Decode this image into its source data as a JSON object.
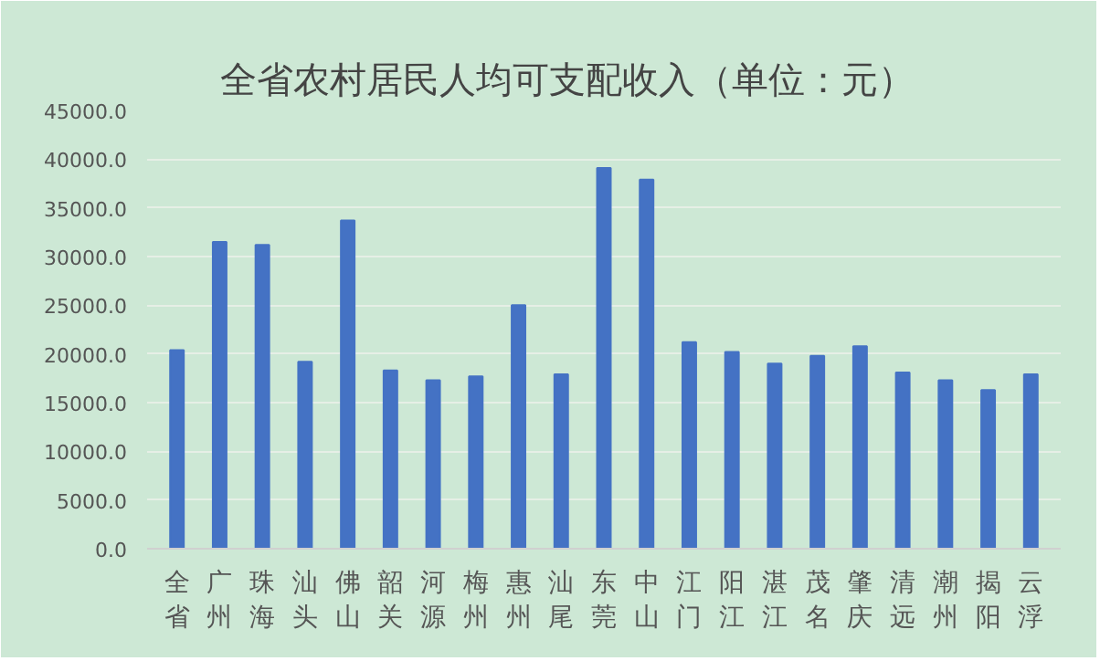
{
  "chart_data": {
    "type": "bar",
    "title": "全省农村居民人均可支配收入（单位：元）",
    "categories": [
      "全省",
      "广州",
      "珠海",
      "汕头",
      "佛山",
      "韶关",
      "河源",
      "梅州",
      "惠州",
      "汕尾",
      "东莞",
      "中山",
      "江门",
      "阳江",
      "湛江",
      "茂名",
      "肇庆",
      "清远",
      "潮州",
      "揭阳",
      "云浮"
    ],
    "values": [
      20400,
      31500,
      31200,
      19200,
      33700,
      18300,
      17300,
      17700,
      25000,
      17900,
      39100,
      37900,
      21200,
      20200,
      19000,
      19800,
      20800,
      18100,
      17300,
      16300,
      17900
    ],
    "color": "#4472c4",
    "ylim": [
      0,
      45000
    ],
    "yticks": [
      {
        "value": 0,
        "label": "0.0"
      },
      {
        "value": 5000,
        "label": "5000.0"
      },
      {
        "value": 10000,
        "label": "10000.0"
      },
      {
        "value": 15000,
        "label": "15000.0"
      },
      {
        "value": 20000,
        "label": "20000.0"
      },
      {
        "value": 25000,
        "label": "25000.0"
      },
      {
        "value": 30000,
        "label": "30000.0"
      },
      {
        "value": 35000,
        "label": "35000.0"
      },
      {
        "value": 40000,
        "label": "40000.0"
      },
      {
        "value": 45000,
        "label": "45000.0"
      }
    ],
    "grid": "y"
  }
}
